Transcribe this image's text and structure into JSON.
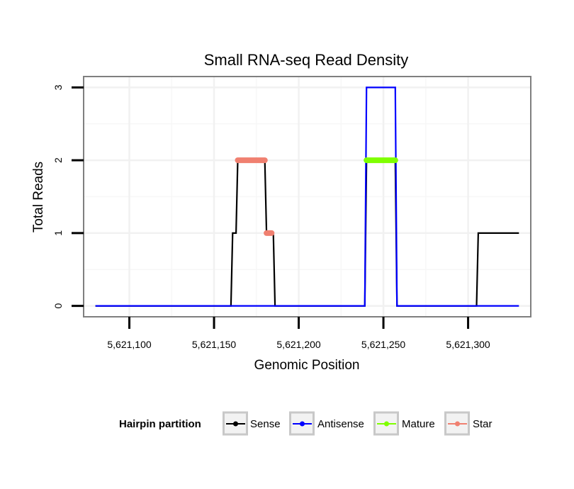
{
  "chart_data": {
    "type": "line",
    "title": "Small RNA-seq Read Density",
    "xlabel": "Genomic Position",
    "ylabel": "Total Reads",
    "xlim": [
      5621073,
      5621337
    ],
    "ylim": [
      -0.15,
      3.15
    ],
    "x_ticks": [
      5621100,
      5621150,
      5621200,
      5621250,
      5621300
    ],
    "x_tick_labels": [
      "5,621,100",
      "5,621,150",
      "5,621,200",
      "5,621,250",
      "5,621,300"
    ],
    "y_ticks": [
      0,
      1,
      2,
      3
    ],
    "y_tick_labels": [
      "0",
      "1",
      "2",
      "3"
    ],
    "legend": {
      "title": "Hairpin partition",
      "position": "bottom",
      "entries": [
        "Sense",
        "Antisense",
        "Mature",
        "Star"
      ]
    },
    "series": [
      {
        "name": "Sense",
        "color": "#000000",
        "style": "step",
        "x": [
          5621080,
          5621160,
          5621161,
          5621163,
          5621164,
          5621180,
          5621181,
          5621185,
          5621186,
          5621239,
          5621240,
          5621257,
          5621258,
          5621305,
          5621306,
          5621330
        ],
        "y": [
          0,
          0,
          1,
          1,
          2,
          2,
          1,
          1,
          0,
          0,
          2,
          2,
          0,
          0,
          1,
          1
        ]
      },
      {
        "name": "Antisense",
        "color": "#0000FF",
        "style": "step",
        "x": [
          5621080,
          5621239,
          5621240,
          5621257,
          5621258,
          5621330
        ],
        "y": [
          0,
          0,
          3,
          3,
          0,
          0
        ]
      },
      {
        "name": "Mature",
        "color": "#7FFF00",
        "style": "segment",
        "x": [
          5621240,
          5621257
        ],
        "y": [
          2,
          2
        ]
      },
      {
        "name": "Star",
        "color": "#F08070",
        "style": "segment",
        "segments": [
          {
            "x": [
              5621164,
              5621180
            ],
            "y": [
              2,
              2
            ]
          },
          {
            "x": [
              5621181,
              5621184
            ],
            "y": [
              1,
              1
            ]
          }
        ]
      }
    ]
  }
}
